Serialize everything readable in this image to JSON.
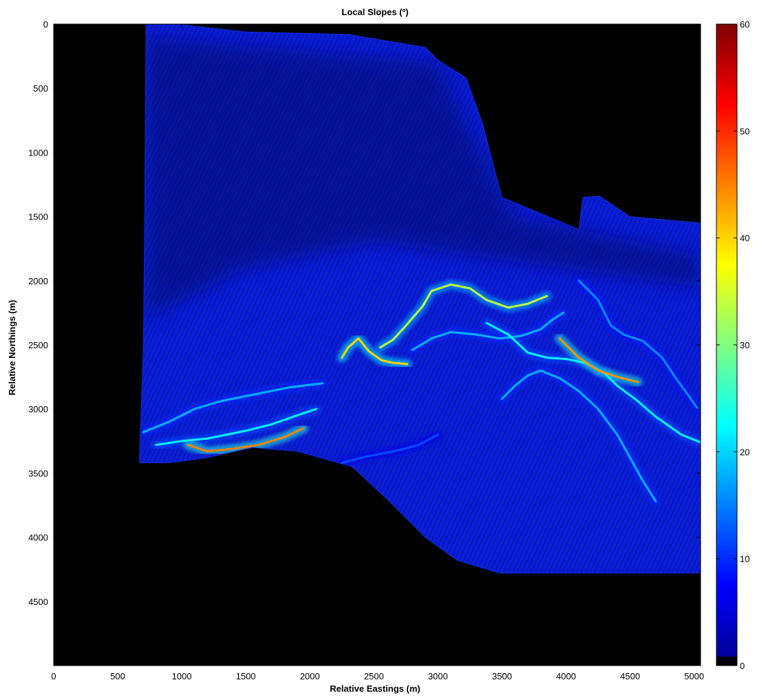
{
  "chart_data": {
    "type": "heatmap",
    "title": "Local Slopes (º)",
    "xlabel": "Relative Eastings (m)",
    "ylabel": "Relative Northings (m)",
    "xlim": [
      0,
      5050
    ],
    "ylim": [
      0,
      5000
    ],
    "y_reversed": true,
    "x_ticks": [
      0,
      500,
      1000,
      1500,
      2000,
      2500,
      3000,
      3500,
      4000,
      4500,
      5000
    ],
    "x_tick_labels": [
      "0",
      "500",
      "1000",
      "1500",
      "2000",
      "2500",
      "3000",
      "3500",
      "4000",
      "4500",
      "5000"
    ],
    "y_ticks": [
      0,
      500,
      1000,
      1500,
      2000,
      2500,
      3000,
      3500,
      4000,
      4500
    ],
    "y_tick_labels": [
      "0",
      "500",
      "1000",
      "1500",
      "2000",
      "2500",
      "3000",
      "3500",
      "4000",
      "4500"
    ],
    "colorbar": {
      "min": 0,
      "max": 60,
      "ticks": [
        0,
        10,
        20,
        30,
        40,
        50,
        60
      ],
      "tick_labels": [
        "0",
        "10",
        "20",
        "30",
        "40",
        "50",
        "60"
      ],
      "colormap": "jet",
      "zero_color": "#000000"
    },
    "survey_outline": [
      [
        720,
        0
      ],
      [
        960,
        0
      ],
      [
        1500,
        60
      ],
      [
        2300,
        80
      ],
      [
        2900,
        180
      ],
      [
        3000,
        280
      ],
      [
        3220,
        420
      ],
      [
        3350,
        780
      ],
      [
        3420,
        1050
      ],
      [
        3500,
        1350
      ],
      [
        4100,
        1600
      ],
      [
        4130,
        1350
      ],
      [
        4260,
        1340
      ],
      [
        4500,
        1500
      ],
      [
        5050,
        1550
      ],
      [
        5050,
        4280
      ],
      [
        3480,
        4280
      ],
      [
        3150,
        4180
      ],
      [
        2900,
        4000
      ],
      [
        2600,
        3700
      ],
      [
        2330,
        3450
      ],
      [
        1900,
        3330
      ],
      [
        1550,
        3300
      ],
      [
        1200,
        3380
      ],
      [
        900,
        3420
      ],
      [
        670,
        3420
      ],
      [
        670,
        3350
      ],
      [
        700,
        2500
      ],
      [
        710,
        1500
      ],
      [
        720,
        0
      ]
    ],
    "ridges": [
      {
        "points": [
          [
            700,
            3180
          ],
          [
            900,
            3100
          ],
          [
            1100,
            3000
          ],
          [
            1300,
            2940
          ],
          [
            1600,
            2880
          ],
          [
            1850,
            2830
          ],
          [
            2100,
            2800
          ]
        ],
        "peak_slope": 18
      },
      {
        "points": [
          [
            800,
            3280
          ],
          [
            1000,
            3250
          ],
          [
            1200,
            3230
          ],
          [
            1350,
            3200
          ],
          [
            1500,
            3170
          ],
          [
            1700,
            3120
          ],
          [
            1900,
            3050
          ],
          [
            2050,
            3000
          ]
        ],
        "peak_slope": 22
      },
      {
        "points": [
          [
            1050,
            3280
          ],
          [
            1200,
            3330
          ],
          [
            1400,
            3310
          ],
          [
            1600,
            3280
          ],
          [
            1800,
            3220
          ],
          [
            1950,
            3150
          ]
        ],
        "peak_slope": 45
      },
      {
        "points": [
          [
            2250,
            2600
          ],
          [
            2300,
            2520
          ],
          [
            2380,
            2450
          ],
          [
            2460,
            2550
          ],
          [
            2560,
            2620
          ],
          [
            2650,
            2640
          ],
          [
            2760,
            2650
          ]
        ],
        "peak_slope": 40
      },
      {
        "points": [
          [
            2550,
            2520
          ],
          [
            2650,
            2460
          ],
          [
            2750,
            2350
          ],
          [
            2880,
            2200
          ],
          [
            2950,
            2080
          ],
          [
            3100,
            2030
          ],
          [
            3250,
            2060
          ],
          [
            3380,
            2150
          ],
          [
            3550,
            2210
          ],
          [
            3700,
            2180
          ],
          [
            3850,
            2120
          ]
        ],
        "peak_slope": 34
      },
      {
        "points": [
          [
            2800,
            2540
          ],
          [
            2950,
            2450
          ],
          [
            3100,
            2400
          ],
          [
            3300,
            2420
          ],
          [
            3480,
            2450
          ],
          [
            3650,
            2430
          ],
          [
            3800,
            2380
          ],
          [
            3900,
            2300
          ],
          [
            3980,
            2250
          ]
        ],
        "peak_slope": 18
      },
      {
        "points": [
          [
            3380,
            2330
          ],
          [
            3550,
            2420
          ],
          [
            3700,
            2560
          ],
          [
            3850,
            2600
          ],
          [
            4000,
            2610
          ],
          [
            4150,
            2640
          ],
          [
            4300,
            2720
          ],
          [
            4400,
            2820
          ],
          [
            4550,
            2930
          ],
          [
            4700,
            3060
          ],
          [
            4900,
            3200
          ],
          [
            5050,
            3260
          ]
        ],
        "peak_slope": 22
      },
      {
        "points": [
          [
            3950,
            2450
          ],
          [
            4100,
            2600
          ],
          [
            4250,
            2700
          ],
          [
            4400,
            2750
          ],
          [
            4560,
            2790
          ]
        ],
        "peak_slope": 44
      },
      {
        "points": [
          [
            3500,
            2920
          ],
          [
            3600,
            2820
          ],
          [
            3700,
            2740
          ],
          [
            3800,
            2700
          ],
          [
            3950,
            2760
          ],
          [
            4100,
            2860
          ],
          [
            4250,
            3000
          ],
          [
            4400,
            3200
          ],
          [
            4500,
            3380
          ],
          [
            4600,
            3560
          ],
          [
            4700,
            3720
          ]
        ],
        "peak_slope": 18
      },
      {
        "points": [
          [
            4100,
            2000
          ],
          [
            4250,
            2150
          ],
          [
            4350,
            2350
          ],
          [
            4450,
            2420
          ],
          [
            4600,
            2470
          ],
          [
            4750,
            2600
          ],
          [
            4850,
            2750
          ],
          [
            4960,
            2900
          ],
          [
            5030,
            3000
          ]
        ],
        "peak_slope": 16
      },
      {
        "points": [
          [
            2250,
            3420
          ],
          [
            2400,
            3380
          ],
          [
            2550,
            3350
          ],
          [
            2700,
            3320
          ],
          [
            2850,
            3280
          ],
          [
            3000,
            3200
          ]
        ],
        "peak_slope": 12
      }
    ]
  }
}
